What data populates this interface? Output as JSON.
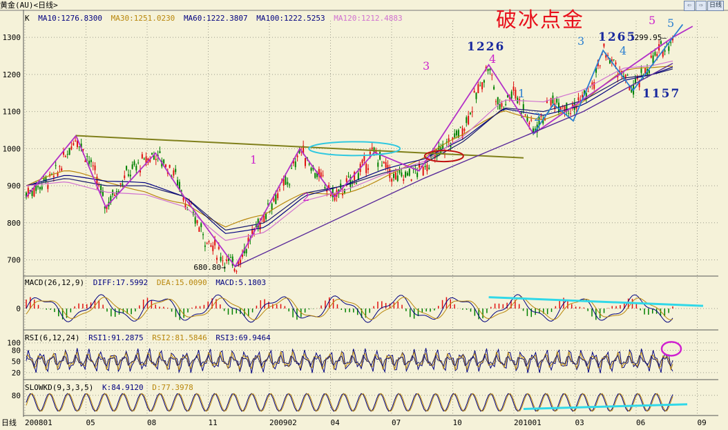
{
  "window": {
    "title": "黄金(AU)<日线>",
    "nav_buttons": [
      "⇦",
      "⇨",
      "日线"
    ],
    "bottom_label": "日线"
  },
  "watermark": "破冰点金",
  "price_panel": {
    "indicator_label": "K",
    "ma_labels": [
      {
        "text": "MA10:1276.8300",
        "color": "#000080"
      },
      {
        "text": "MA30:1251.0230",
        "color": "#b8860b"
      },
      {
        "text": "MA60:1222.3807",
        "color": "#000080"
      },
      {
        "text": "MA100:1222.5253",
        "color": "#000080"
      },
      {
        "text": "MA120:1212.4883",
        "color": "#d070d0"
      }
    ],
    "low_label": "680.80",
    "high_label": "1299.95",
    "annotations": [
      {
        "text": "1",
        "color": "#cc22cc",
        "style": "wave"
      },
      {
        "text": "2",
        "color": "#cc22cc",
        "style": "wave"
      },
      {
        "text": "3",
        "color": "#cc22cc",
        "style": "wave"
      },
      {
        "text": "4",
        "color": "#cc22cc",
        "style": "wave"
      },
      {
        "text": "5",
        "color": "#cc22cc",
        "style": "wave"
      },
      {
        "text": "1226",
        "color": "#1a2a9e",
        "style": "num"
      },
      {
        "text": "1",
        "color": "#2a7fd0",
        "style": "wave"
      },
      {
        "text": "2",
        "color": "#2a7fd0",
        "style": "wave"
      },
      {
        "text": "3",
        "color": "#2a7fd0",
        "style": "wave"
      },
      {
        "text": "1265",
        "color": "#1a2a9e",
        "style": "num"
      },
      {
        "text": "4",
        "color": "#2a7fd0",
        "style": "wave"
      },
      {
        "text": "5",
        "color": "#2a7fd0",
        "style": "wave"
      },
      {
        "text": "1157",
        "color": "#1a2a9e",
        "style": "num"
      }
    ]
  },
  "macd_panel": {
    "label": "MACD(26,12,9)",
    "values": [
      {
        "text": "DIFF:17.5992",
        "color": "#000080"
      },
      {
        "text": "DEA:15.0090",
        "color": "#b8860b"
      },
      {
        "text": "MACD:5.1803",
        "color": "#000080"
      }
    ]
  },
  "rsi_panel": {
    "label": "RSI(6,12,24)",
    "values": [
      {
        "text": "RSI1:91.2875",
        "color": "#000080"
      },
      {
        "text": "RSI2:81.5846",
        "color": "#b8860b"
      },
      {
        "text": "RSI3:69.9464",
        "color": "#000080"
      }
    ]
  },
  "kd_panel": {
    "label": "SLOWKD(9,3,3,5)",
    "values": [
      {
        "text": "K:84.9120",
        "color": "#000080"
      },
      {
        "text": "D:77.3978",
        "color": "#b8860b"
      }
    ]
  },
  "chart_data": [
    {
      "type": "candlestick",
      "title": "",
      "x": [
        "200801",
        "05",
        "08",
        "11",
        "200902",
        "04",
        "07",
        "10",
        "201001",
        "03",
        "06",
        "09"
      ],
      "y_ticks": [
        700,
        800,
        900,
        1000,
        1100,
        1200,
        1300
      ],
      "ylim": [
        660,
        1345
      ],
      "grid": "horizontal-dotted",
      "close_path": [
        [
          0,
          880
        ],
        [
          3,
          930
        ],
        [
          5,
          1035
        ],
        [
          6.5,
          960
        ],
        [
          8,
          845
        ],
        [
          10,
          930
        ],
        [
          13,
          988
        ],
        [
          15,
          930
        ],
        [
          16,
          860
        ],
        [
          18,
          760
        ],
        [
          20,
          700
        ],
        [
          21,
          682
        ],
        [
          23,
          780
        ],
        [
          25,
          870
        ],
        [
          26.5,
          920
        ],
        [
          27.5,
          1000
        ],
        [
          29,
          940
        ],
        [
          31,
          870
        ],
        [
          33,
          920
        ],
        [
          35,
          990
        ],
        [
          37,
          920
        ],
        [
          39.5,
          940
        ],
        [
          42,
          1000
        ],
        [
          44,
          1060
        ],
        [
          46.5,
          1226
        ],
        [
          47.5,
          1110
        ],
        [
          49,
          1160
        ],
        [
          51,
          1050
        ],
        [
          53,
          1130
        ],
        [
          55,
          1110
        ],
        [
          57,
          1170
        ],
        [
          58,
          1265
        ],
        [
          59,
          1230
        ],
        [
          61,
          1157
        ],
        [
          63,
          1240
        ],
        [
          65,
          1300
        ]
      ],
      "ma_path": [
        [
          0,
          900
        ],
        [
          4,
          920
        ],
        [
          8,
          900
        ],
        [
          12,
          900
        ],
        [
          16,
          870
        ],
        [
          20,
          780
        ],
        [
          24,
          800
        ],
        [
          28,
          880
        ],
        [
          32,
          900
        ],
        [
          36,
          935
        ],
        [
          40,
          960
        ],
        [
          44,
          1020
        ],
        [
          48,
          1110
        ],
        [
          52,
          1100
        ],
        [
          56,
          1130
        ],
        [
          60,
          1190
        ],
        [
          63,
          1200
        ],
        [
          65,
          1215
        ]
      ],
      "low_price": 680.8,
      "high_price": 1299.95
    },
    {
      "type": "bar",
      "title": "",
      "ylabel": "",
      "y_ticks": [
        0
      ],
      "ylim": [
        -60,
        60
      ],
      "zero": 0
    },
    {
      "type": "line",
      "title": "",
      "y_ticks": [
        20,
        50,
        80,
        100
      ],
      "ylim": [
        5,
        105
      ]
    },
    {
      "type": "line",
      "title": "",
      "y_ticks": [
        80
      ],
      "ylim": [
        0,
        100
      ]
    }
  ]
}
